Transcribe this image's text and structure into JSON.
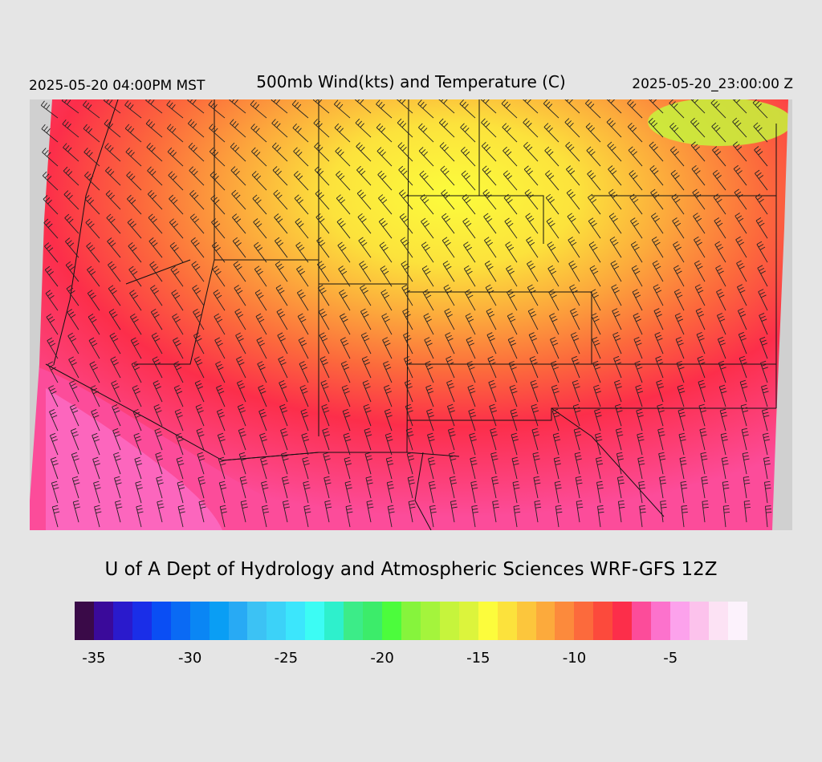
{
  "header": {
    "local_time": "2025-05-20 04:00PM MST",
    "title": "500mb Wind(kts) and Temperature (C)",
    "valid_time": "2025-05-20_23:00:00 Z"
  },
  "credit": "U of A Dept of Hydrology and Atmospheric Sciences WRF-GFS 12Z",
  "colorbar": {
    "colors": [
      "#3a0a48",
      "#3a0a9a",
      "#2a1acc",
      "#1a2ee8",
      "#0a4ef4",
      "#0a6af4",
      "#0a86f4",
      "#0a9ef4",
      "#28aaf4",
      "#3cc2f4",
      "#3cd2f8",
      "#3ce6fc",
      "#3cfcf4",
      "#2ef0cc",
      "#3cec88",
      "#3cec6a",
      "#4cfc3c",
      "#86f43c",
      "#a4f43c",
      "#c6f43c",
      "#dcf43c",
      "#fcfc3c",
      "#fce23c",
      "#fcc63c",
      "#fcaa3c",
      "#fc8a3c",
      "#fc6a3c",
      "#fc4a3c",
      "#fc2e4a",
      "#fc4c9a",
      "#fc72cc",
      "#fca2ec",
      "#fcc2ec",
      "#fce2f4",
      "#fcf2fc"
    ],
    "tick_labels": [
      "-35",
      "-30",
      "-25",
      "-20",
      "-15",
      "-10",
      "-5"
    ]
  },
  "field": {
    "variable": "500mb temperature",
    "units": "C",
    "description_scale": "cool core (~-14 C yellow) over central Rockies/Plains, warmer (~-8 C pink/red) toward southwest and south"
  }
}
